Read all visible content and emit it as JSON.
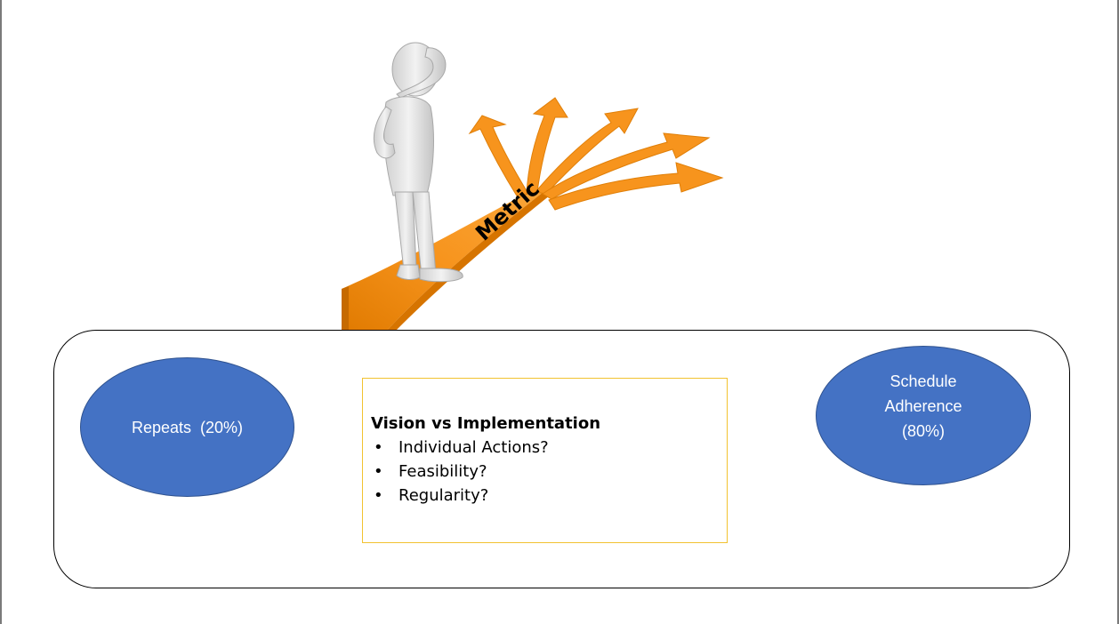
{
  "illustration": {
    "road_label": "Metric",
    "road_color": "#f7941d",
    "figure_color": "#e6e6e6",
    "icon": "thinking-person-at-crossroads-icon"
  },
  "left_ellipse": {
    "label": "Repeats  (20%)",
    "fill": "#4472c4"
  },
  "right_ellipse": {
    "label": "Schedule Adherence (80%)",
    "fill": "#4472c4"
  },
  "text_box": {
    "heading": "Vision vs Implementation",
    "items": [
      "Individual Actions?",
      "Feasibility?",
      "Regularity?"
    ],
    "border_color": "#f2c230"
  }
}
